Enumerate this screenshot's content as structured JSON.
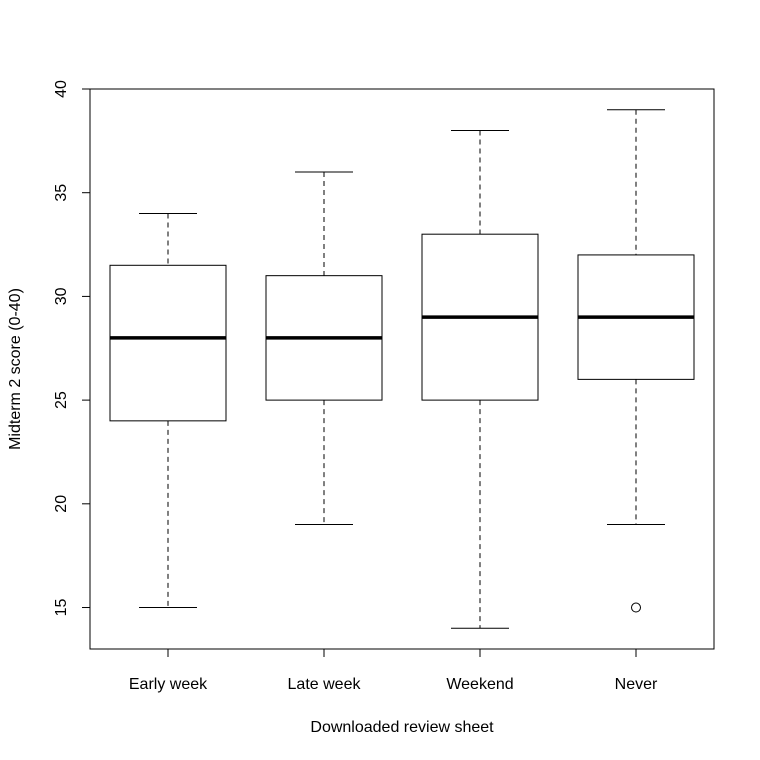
{
  "chart_data": {
    "type": "boxplot",
    "title": "",
    "xlabel": "Downloaded review sheet",
    "ylabel": "Midterm 2 score (0-40)",
    "ylim": [
      13,
      40
    ],
    "yticks": [
      15,
      20,
      25,
      30,
      35,
      40
    ],
    "grid": false,
    "categories": [
      "Early week",
      "Late week",
      "Weekend",
      "Never"
    ],
    "boxes": [
      {
        "name": "Early week",
        "whisker_low": 15,
        "q1": 24,
        "median": 28,
        "q3": 31.5,
        "whisker_high": 34,
        "outliers": []
      },
      {
        "name": "Late week",
        "whisker_low": 19,
        "q1": 25,
        "median": 28,
        "q3": 31,
        "whisker_high": 36,
        "outliers": []
      },
      {
        "name": "Weekend",
        "whisker_low": 14,
        "q1": 25,
        "median": 29,
        "q3": 33,
        "whisker_high": 38,
        "outliers": []
      },
      {
        "name": "Never",
        "whisker_low": 19,
        "q1": 26,
        "median": 29,
        "q3": 32,
        "whisker_high": 39,
        "outliers": [
          15
        ]
      }
    ]
  }
}
